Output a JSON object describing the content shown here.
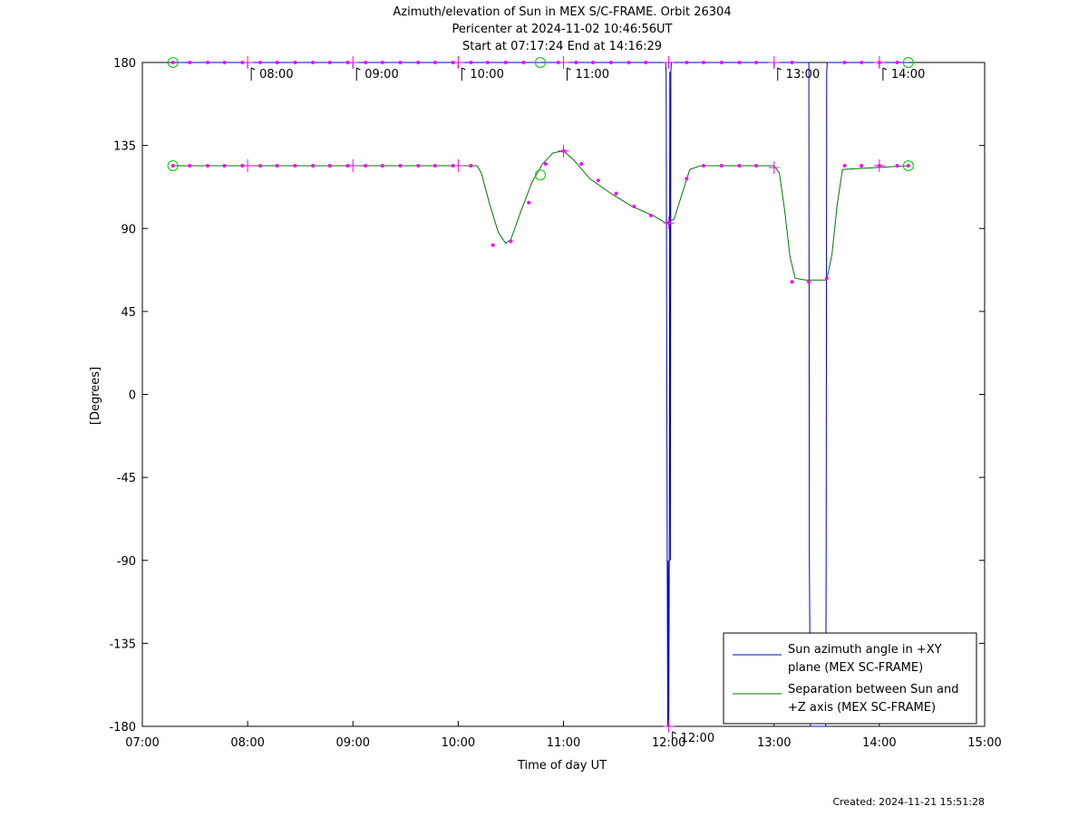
{
  "chart_data": {
    "type": "line",
    "title_lines": [
      "Azimuth/elevation of Sun in MEX S/C-FRAME.  Orbit 26304",
      "Pericenter at 2024-11-02 10:46:56UT",
      "Start at 07:17:24 End at 14:16:29"
    ],
    "xlabel": "Time of day UT",
    "ylabel": "[Degrees]",
    "footer": "Created: 2024-11-21 15:51:28",
    "x_unit": "hours UT",
    "xlim": [
      7,
      15
    ],
    "ylim": [
      -180,
      180
    ],
    "x_ticks": [
      7,
      8,
      9,
      10,
      11,
      12,
      13,
      14,
      15
    ],
    "x_tick_labels": [
      "07:00",
      "08:00",
      "09:00",
      "10:00",
      "11:00",
      "12:00",
      "13:00",
      "14:00",
      "15:00"
    ],
    "y_ticks": [
      180,
      135,
      90,
      45,
      0,
      -45,
      -90,
      -135,
      -180
    ],
    "y_tick_labels": [
      "180",
      "135",
      "90",
      "45",
      "0",
      "-45",
      "-90",
      "-135",
      "-180"
    ],
    "hour_markers": [
      {
        "x": 8,
        "label": "08:00",
        "level": 180
      },
      {
        "x": 9,
        "label": "09:00",
        "level": 180
      },
      {
        "x": 10,
        "label": "10:00",
        "level": 180
      },
      {
        "x": 11,
        "label": "11:00",
        "level": 180
      },
      {
        "x": 12,
        "label": "12:00",
        "level": -180
      },
      {
        "x": 13,
        "label": "13:00",
        "level": 180
      },
      {
        "x": 14,
        "label": "14:00",
        "level": 180
      }
    ],
    "legend": {
      "placement": "bottom-right",
      "entries": [
        {
          "label_lines": [
            "Sun azimuth angle in +XY",
            "plane (MEX SC-FRAME)"
          ],
          "color": "#0000cc"
        },
        {
          "label_lines": [
            "Separation between Sun and",
            "+Z axis (MEX SC-FRAME)"
          ],
          "color": "#007700"
        }
      ]
    },
    "series": [
      {
        "name": "Sun azimuth angle in +XY plane (MEX SC-FRAME)",
        "color": "#0000cc",
        "x": [
          7.29,
          11.97,
          11.975,
          11.985,
          11.99,
          11.995,
          12.0,
          12.005,
          12.01,
          12.015,
          12.02,
          12.025,
          13.33,
          13.335,
          13.345,
          13.49,
          13.495,
          13.5,
          13.505,
          14.275
        ],
        "y": [
          180,
          180,
          175,
          -90,
          -180,
          -90,
          -180,
          -90,
          175,
          -90,
          175,
          180,
          180,
          -90,
          -180,
          -180,
          -90,
          175,
          180,
          180
        ]
      },
      {
        "name": "Separation between Sun and +Z axis (MEX SC-FRAME)",
        "color": "#007700",
        "x": [
          7.29,
          10.18,
          10.22,
          10.3,
          10.38,
          10.45,
          10.5,
          10.6,
          10.7,
          10.8,
          10.9,
          11.0,
          11.1,
          11.25,
          11.45,
          11.65,
          11.85,
          11.97,
          12.05,
          12.15,
          12.2,
          12.3,
          13.0,
          13.05,
          13.1,
          13.15,
          13.2,
          13.3,
          13.5,
          13.55,
          13.6,
          13.65,
          14.275
        ],
        "y": [
          124,
          124,
          120,
          103,
          88,
          82,
          84,
          100,
          115,
          125,
          131,
          132,
          127,
          117,
          109,
          102,
          97,
          93,
          95,
          113,
          122,
          124,
          124,
          120,
          100,
          75,
          63,
          62,
          62,
          76,
          103,
          122,
          124
        ]
      }
    ],
    "markers": {
      "dot_color": "#ff00ff",
      "circle_color": "#00cc00",
      "azimuth_dots": {
        "x": [
          7.29,
          7.45,
          7.62,
          7.78,
          7.95,
          8.12,
          8.28,
          8.45,
          8.62,
          8.78,
          8.95,
          9.12,
          9.28,
          9.45,
          9.62,
          9.78,
          9.95,
          10.12,
          10.28,
          10.45,
          10.62,
          10.95,
          11.12,
          11.28,
          11.45,
          11.62,
          11.78,
          12.17,
          12.33,
          12.5,
          12.67,
          12.83,
          13.17,
          13.67,
          13.83,
          14.0,
          14.17
        ],
        "y": [
          180,
          180,
          180,
          180,
          180,
          180,
          180,
          180,
          180,
          180,
          180,
          180,
          180,
          180,
          180,
          180,
          180,
          180,
          180,
          180,
          180,
          180,
          180,
          180,
          180,
          180,
          180,
          180,
          180,
          180,
          180,
          180,
          180,
          180,
          180,
          180,
          180
        ]
      },
      "separation_dots": {
        "x": [
          7.29,
          7.45,
          7.62,
          7.78,
          7.95,
          8.12,
          8.28,
          8.45,
          8.62,
          8.78,
          8.95,
          9.12,
          9.28,
          9.45,
          9.62,
          9.78,
          9.95,
          10.12,
          10.33,
          10.5,
          10.67,
          10.83,
          11.0,
          11.17,
          11.33,
          11.5,
          11.67,
          11.83,
          12.0,
          12.17,
          12.33,
          12.5,
          12.67,
          12.83,
          13.17,
          13.33,
          13.5,
          13.67,
          13.83,
          14.0,
          14.17,
          14.275
        ],
        "y": [
          124,
          124,
          124,
          124,
          124,
          124,
          124,
          124,
          124,
          124,
          124,
          124,
          124,
          124,
          124,
          124,
          124,
          124,
          81,
          83,
          104,
          125,
          132,
          125,
          116,
          109,
          102,
          97,
          93,
          117,
          124,
          124,
          124,
          124,
          61,
          61,
          63,
          124,
          124,
          124,
          124,
          124
        ]
      },
      "circles": {
        "x": [
          7.29,
          10.78,
          14.275,
          7.29,
          10.78,
          14.275
        ],
        "y": [
          180,
          180,
          180,
          124,
          119,
          124
        ]
      },
      "crosses": {
        "x": [
          8.0,
          9.0,
          10.0,
          11.0,
          12.0,
          13.0,
          14.0,
          8.0,
          9.0,
          10.0,
          11.0,
          12.0,
          13.0,
          14.0,
          12.0
        ],
        "y": [
          180,
          180,
          180,
          180,
          180,
          180,
          180,
          124,
          124,
          124,
          132,
          93,
          123,
          124,
          -180
        ]
      }
    }
  }
}
